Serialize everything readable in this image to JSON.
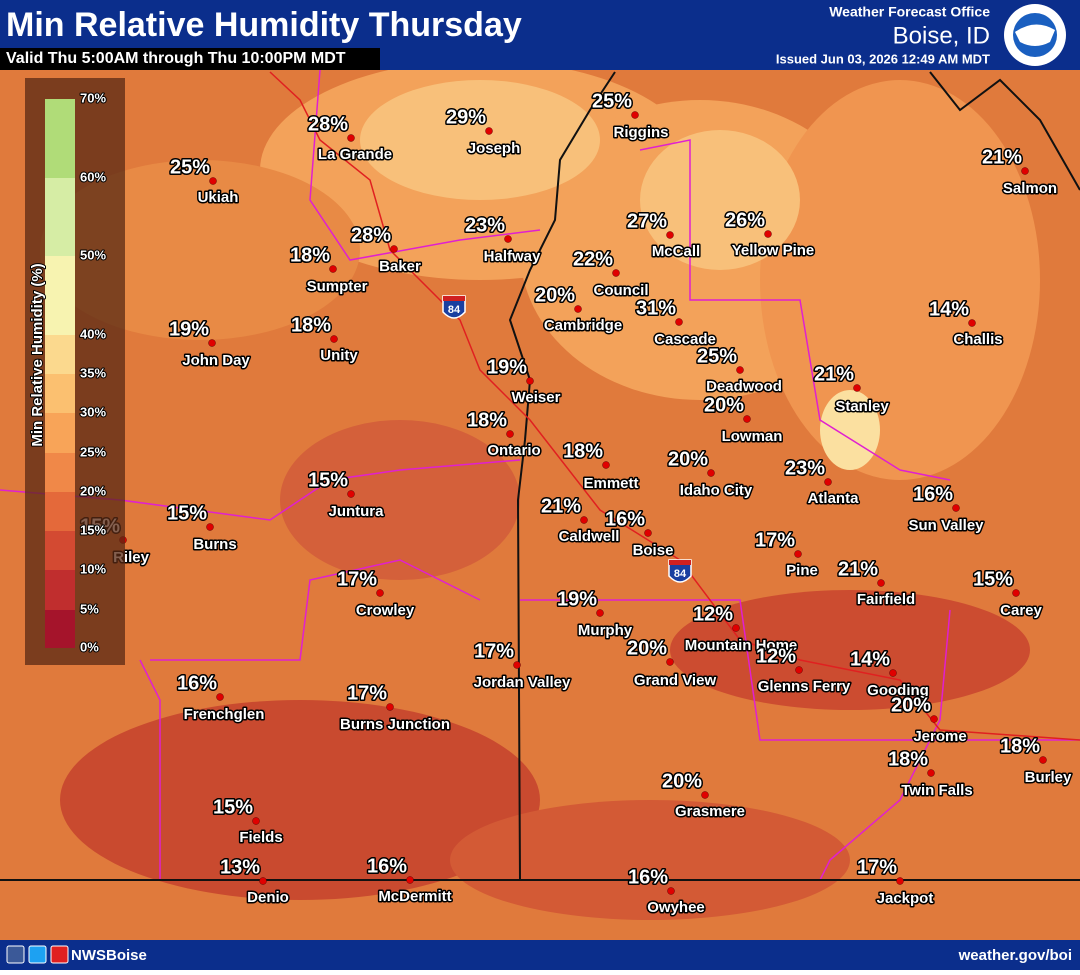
{
  "header": {
    "title": "Min Relative Humidity Thursday",
    "subtitle": "Valid Thu 5:00AM through Thu 10:00PM MDT",
    "office": "Weather Forecast Office",
    "location": "Boise, ID",
    "issued": "Issued Jun 03, 2026 12:49 AM MDT"
  },
  "legend": {
    "title": "Min Relative Humidity (%)",
    "labels": [
      "70%",
      "60%",
      "50%",
      "40%",
      "35%",
      "30%",
      "25%",
      "20%",
      "15%",
      "10%",
      "5%",
      "0%"
    ]
  },
  "cities": [
    {
      "name": "La Grande",
      "value": "28%"
    },
    {
      "name": "Joseph",
      "value": "29%"
    },
    {
      "name": "Riggins",
      "value": "25%"
    },
    {
      "name": "Salmon",
      "value": "21%"
    },
    {
      "name": "Ukiah",
      "value": "25%"
    },
    {
      "name": "Baker",
      "value": "28%"
    },
    {
      "name": "Halfway",
      "value": "23%"
    },
    {
      "name": "McCall",
      "value": "27%"
    },
    {
      "name": "Yellow Pine",
      "value": "26%"
    },
    {
      "name": "Sumpter",
      "value": "18%"
    },
    {
      "name": "Council",
      "value": "22%"
    },
    {
      "name": "Cambridge",
      "value": "20%"
    },
    {
      "name": "Cascade",
      "value": "31%"
    },
    {
      "name": "Challis",
      "value": "14%"
    },
    {
      "name": "John Day",
      "value": "19%"
    },
    {
      "name": "Unity",
      "value": "18%"
    },
    {
      "name": "Weiser",
      "value": "19%"
    },
    {
      "name": "Deadwood",
      "value": "25%"
    },
    {
      "name": "Stanley",
      "value": "21%"
    },
    {
      "name": "Lowman",
      "value": "20%"
    },
    {
      "name": "Ontario",
      "value": "18%"
    },
    {
      "name": "Emmett",
      "value": "18%"
    },
    {
      "name": "Idaho City",
      "value": "20%"
    },
    {
      "name": "Atlanta",
      "value": "23%"
    },
    {
      "name": "Juntura",
      "value": "15%"
    },
    {
      "name": "Sun Valley",
      "value": "16%"
    },
    {
      "name": "Burns",
      "value": "15%"
    },
    {
      "name": "Riley",
      "value": "15%"
    },
    {
      "name": "Caldwell",
      "value": "21%"
    },
    {
      "name": "Boise",
      "value": "16%"
    },
    {
      "name": "Pine",
      "value": "17%"
    },
    {
      "name": "Fairfield",
      "value": "21%"
    },
    {
      "name": "Carey",
      "value": "15%"
    },
    {
      "name": "Crowley",
      "value": "17%"
    },
    {
      "name": "Murphy",
      "value": "19%"
    },
    {
      "name": "Mountain Home",
      "value": "12%"
    },
    {
      "name": "Grand View",
      "value": "20%"
    },
    {
      "name": "Glenns Ferry",
      "value": "12%"
    },
    {
      "name": "Gooding",
      "value": "14%"
    },
    {
      "name": "Jordan Valley",
      "value": "17%"
    },
    {
      "name": "Frenchglen",
      "value": "16%"
    },
    {
      "name": "Burns Junction",
      "value": "17%"
    },
    {
      "name": "Jerome",
      "value": "20%"
    },
    {
      "name": "Burley",
      "value": "18%"
    },
    {
      "name": "Twin Falls",
      "value": "18%"
    },
    {
      "name": "Grasmere",
      "value": "20%"
    },
    {
      "name": "Fields",
      "value": "15%"
    },
    {
      "name": "Denio",
      "value": "13%"
    },
    {
      "name": "McDermitt",
      "value": "16%"
    },
    {
      "name": "Owyhee",
      "value": "16%"
    },
    {
      "name": "Jackpot",
      "value": "17%"
    }
  ],
  "interstate_shields": [
    "84",
    "84"
  ],
  "footer": {
    "social": "NWSBoise",
    "website": "weather.gov/boi"
  }
}
